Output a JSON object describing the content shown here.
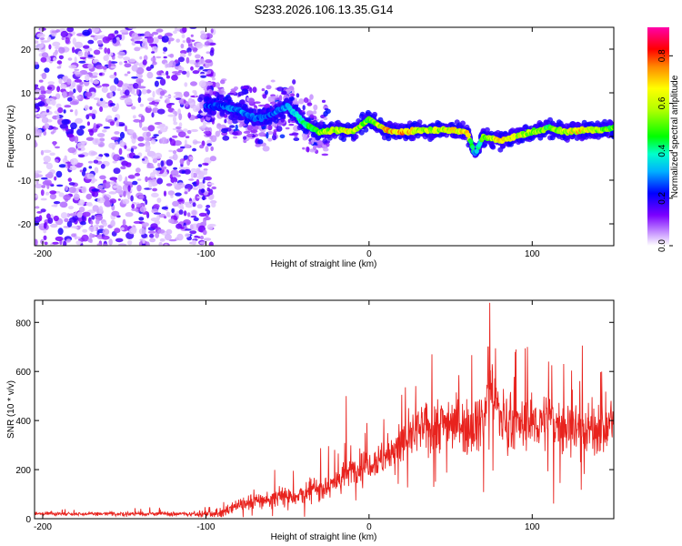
{
  "title": "S233.2026.106.13.35.G14",
  "chart_data": [
    {
      "type": "heatmap",
      "name": "spectrogram",
      "xlabel": "Height of straight line (km)",
      "ylabel": "Frequency (Hz)",
      "xlim": [
        -205,
        150
      ],
      "ylim": [
        -25,
        25
      ],
      "x_ticks": [
        -200,
        -100,
        0,
        100
      ],
      "y_ticks": [
        -20,
        -10,
        0,
        10,
        20
      ],
      "x_tick_labels": [
        "-200",
        "-100",
        "0",
        "100"
      ],
      "y_tick_labels": [
        "-20",
        "-10",
        "0",
        "10",
        "20"
      ],
      "colorbar": {
        "label": "Normalized spectral amplitude",
        "range": [
          0,
          0.92
        ],
        "ticks": [
          0.0,
          0.2,
          0.4,
          0.6,
          0.8
        ],
        "tick_labels": [
          "0.0",
          "0.2",
          "0.4",
          "0.6",
          "0.8"
        ]
      },
      "ridge": {
        "x": [
          -100,
          -90,
          -80,
          -70,
          -60,
          -50,
          -40,
          -30,
          -20,
          -10,
          0,
          10,
          20,
          30,
          40,
          50,
          60,
          65,
          70,
          80,
          90,
          100,
          110,
          120,
          130,
          140,
          150
        ],
        "frequency": [
          7,
          7,
          6,
          4,
          5,
          7,
          3,
          1,
          1.5,
          1,
          4,
          1.5,
          1,
          1.5,
          1.5,
          1.5,
          1,
          -4,
          0,
          -1,
          0,
          1,
          2,
          1,
          1.5,
          1.5,
          2
        ],
        "amplitude": [
          0.3,
          0.3,
          0.35,
          0.3,
          0.3,
          0.35,
          0.5,
          0.65,
          0.7,
          0.75,
          0.55,
          0.8,
          0.85,
          0.7,
          0.7,
          0.75,
          0.8,
          0.35,
          0.6,
          0.8,
          0.75,
          0.7,
          0.55,
          0.7,
          0.8,
          0.65,
          0.6
        ]
      },
      "noise_region": [
        -205,
        -95
      ]
    },
    {
      "type": "line",
      "name": "snr",
      "xlabel": "Height of straight line (km)",
      "ylabel": "SNR (10 * v/v)",
      "xlim": [
        -205,
        150
      ],
      "ylim": [
        0,
        890
      ],
      "x_ticks": [
        -200,
        -100,
        0,
        100
      ],
      "y_ticks": [
        0,
        200,
        400,
        600,
        800
      ],
      "x_tick_labels": [
        "-200",
        "-100",
        "0",
        "100"
      ],
      "y_tick_labels": [
        "0",
        "200",
        "400",
        "600",
        "800"
      ],
      "color": "#e8231e",
      "trend": {
        "x": [
          -205,
          -100,
          -90,
          -80,
          -60,
          -40,
          -20,
          -10,
          0,
          10,
          20,
          30,
          40,
          50,
          60,
          70,
          74,
          80,
          90,
          100,
          110,
          120,
          130,
          140,
          150
        ],
        "y": [
          20,
          20,
          25,
          60,
          80,
          100,
          150,
          200,
          230,
          250,
          300,
          360,
          380,
          400,
          380,
          400,
          560,
          420,
          380,
          390,
          400,
          380,
          370,
          360,
          380
        ]
      },
      "noise_amplitude": {
        "x": [
          -205,
          -100,
          -80,
          -40,
          0,
          20,
          40,
          80,
          150
        ],
        "y": [
          10,
          12,
          40,
          60,
          80,
          110,
          140,
          140,
          130
        ]
      },
      "peaks": [
        {
          "x": 74,
          "y": 880
        },
        {
          "x": 73,
          "y": 700
        },
        {
          "x": -14,
          "y": 500
        },
        {
          "x": 110,
          "y": 640
        }
      ]
    }
  ]
}
